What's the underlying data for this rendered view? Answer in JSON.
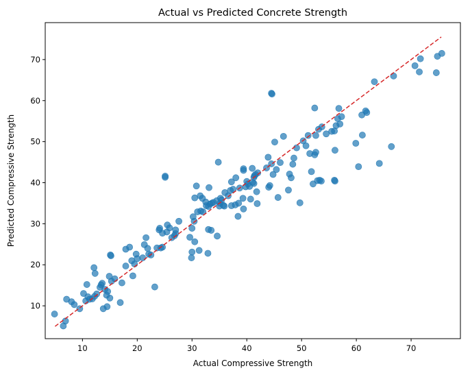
{
  "chart_data": {
    "type": "scatter",
    "title": "Actual vs Predicted Concrete Strength",
    "xlabel": "Actual Compressive Strength",
    "ylabel": "Predicted Compressive Strength",
    "xlim": [
      3.2,
      79.0
    ],
    "ylim": [
      2.0,
      79.0
    ],
    "xticks": [
      10,
      20,
      30,
      40,
      50,
      60,
      70
    ],
    "yticks": [
      10,
      20,
      30,
      40,
      50,
      60,
      70
    ],
    "grid": false,
    "point_color": "#1f77b4",
    "point_alpha": 0.7,
    "reference_line": {
      "from": [
        5,
        5
      ],
      "to": [
        75.5,
        75.5
      ],
      "color": "#d62728",
      "style": "dashed"
    },
    "points": [
      [
        4.9,
        8.0
      ],
      [
        6.5,
        5.1
      ],
      [
        6.9,
        6.3
      ],
      [
        7.1,
        11.6
      ],
      [
        8.0,
        11.0
      ],
      [
        8.5,
        10.3
      ],
      [
        9.5,
        9.3
      ],
      [
        10.2,
        13.0
      ],
      [
        10.6,
        11.2
      ],
      [
        10.8,
        15.2
      ],
      [
        11.0,
        12.2
      ],
      [
        11.3,
        11.6
      ],
      [
        11.8,
        11.7
      ],
      [
        12.2,
        12.3
      ],
      [
        12.1,
        19.3
      ],
      [
        12.3,
        17.9
      ],
      [
        12.6,
        12.9
      ],
      [
        13.2,
        14.5
      ],
      [
        13.4,
        15.1
      ],
      [
        13.6,
        15.5
      ],
      [
        13.8,
        9.3
      ],
      [
        14.1,
        14.0
      ],
      [
        14.4,
        12.6
      ],
      [
        14.5,
        9.8
      ],
      [
        14.6,
        13.5
      ],
      [
        14.9,
        17.2
      ],
      [
        15.1,
        22.4
      ],
      [
        15.2,
        22.2
      ],
      [
        15.0,
        11.9
      ],
      [
        15.3,
        16.0
      ],
      [
        15.9,
        16.6
      ],
      [
        16.9,
        10.8
      ],
      [
        17.2,
        15.6
      ],
      [
        17.9,
        19.7
      ],
      [
        17.9,
        23.8
      ],
      [
        18.6,
        24.3
      ],
      [
        19.0,
        21.0
      ],
      [
        19.2,
        17.3
      ],
      [
        19.5,
        20.2
      ],
      [
        19.8,
        22.6
      ],
      [
        20.0,
        21.5
      ],
      [
        21.0,
        21.7
      ],
      [
        21.3,
        24.9
      ],
      [
        21.6,
        26.6
      ],
      [
        21.9,
        24.0
      ],
      [
        22.1,
        22.6
      ],
      [
        22.5,
        22.4
      ],
      [
        23.2,
        14.6
      ],
      [
        23.6,
        24.1
      ],
      [
        24.0,
        28.5
      ],
      [
        24.1,
        28.9
      ],
      [
        24.3,
        24.1
      ],
      [
        24.6,
        24.3
      ],
      [
        24.6,
        27.7
      ],
      [
        25.1,
        41.3
      ],
      [
        25.1,
        41.6
      ],
      [
        25.4,
        28.0
      ],
      [
        25.5,
        29.7
      ],
      [
        25.9,
        29.0
      ],
      [
        26.3,
        26.6
      ],
      [
        26.8,
        27.1
      ],
      [
        27.0,
        27.6
      ],
      [
        27.0,
        28.5
      ],
      [
        27.6,
        30.6
      ],
      [
        29.6,
        26.7
      ],
      [
        29.9,
        21.7
      ],
      [
        30.0,
        23.1
      ],
      [
        30.0,
        28.9
      ],
      [
        30.2,
        31.7
      ],
      [
        30.4,
        30.6
      ],
      [
        30.5,
        25.6
      ],
      [
        30.5,
        36.3
      ],
      [
        30.8,
        39.2
      ],
      [
        31.0,
        32.9
      ],
      [
        31.3,
        23.5
      ],
      [
        31.5,
        36.8
      ],
      [
        31.6,
        33.1
      ],
      [
        31.9,
        36.2
      ],
      [
        32.0,
        32.9
      ],
      [
        32.5,
        35.3
      ],
      [
        32.6,
        34.4
      ],
      [
        32.9,
        22.8
      ],
      [
        33.0,
        28.6
      ],
      [
        33.0,
        34.2
      ],
      [
        33.1,
        38.8
      ],
      [
        33.3,
        34.8
      ],
      [
        33.5,
        28.4
      ],
      [
        33.6,
        35.0
      ],
      [
        33.9,
        35.2
      ],
      [
        34.5,
        35.6
      ],
      [
        34.6,
        27.0
      ],
      [
        34.8,
        45.0
      ],
      [
        35.0,
        34.3
      ],
      [
        35.1,
        35.0
      ],
      [
        35.2,
        36.2
      ],
      [
        35.4,
        35.8
      ],
      [
        35.7,
        34.5
      ],
      [
        35.9,
        34.3
      ],
      [
        36.0,
        37.6
      ],
      [
        36.6,
        36.8
      ],
      [
        37.0,
        38.1
      ],
      [
        37.2,
        34.4
      ],
      [
        37.2,
        40.2
      ],
      [
        37.5,
        38.4
      ],
      [
        37.9,
        34.6
      ],
      [
        38.0,
        41.2
      ],
      [
        38.4,
        31.8
      ],
      [
        38.5,
        35.0
      ],
      [
        38.7,
        38.7
      ],
      [
        39.3,
        36.2
      ],
      [
        39.4,
        43.0
      ],
      [
        39.4,
        43.4
      ],
      [
        39.4,
        33.6
      ],
      [
        39.8,
        39.0
      ],
      [
        40.0,
        40.3
      ],
      [
        40.2,
        39.7
      ],
      [
        40.5,
        39.1
      ],
      [
        40.7,
        36.0
      ],
      [
        41.0,
        43.5
      ],
      [
        41.1,
        40.1
      ],
      [
        41.3,
        39.8
      ],
      [
        41.3,
        41.3
      ],
      [
        41.4,
        41.7
      ],
      [
        41.6,
        42.0
      ],
      [
        41.8,
        37.8
      ],
      [
        41.9,
        34.9
      ],
      [
        42.0,
        42.4
      ],
      [
        43.6,
        43.6
      ],
      [
        43.9,
        46.2
      ],
      [
        44.0,
        38.9
      ],
      [
        44.2,
        39.3
      ],
      [
        44.5,
        61.8
      ],
      [
        44.6,
        61.6
      ],
      [
        44.5,
        44.6
      ],
      [
        44.8,
        42.0
      ],
      [
        45.1,
        49.9
      ],
      [
        45.4,
        43.2
      ],
      [
        45.7,
        36.4
      ],
      [
        46.1,
        44.9
      ],
      [
        46.7,
        51.3
      ],
      [
        47.6,
        38.2
      ],
      [
        47.8,
        42.1
      ],
      [
        48.1,
        41.2
      ],
      [
        48.4,
        44.5
      ],
      [
        48.6,
        46.0
      ],
      [
        49.1,
        48.5
      ],
      [
        49.7,
        35.1
      ],
      [
        50.3,
        50.2
      ],
      [
        50.8,
        49.0
      ],
      [
        51.2,
        51.5
      ],
      [
        51.5,
        47.1
      ],
      [
        51.8,
        42.7
      ],
      [
        52.1,
        39.7
      ],
      [
        52.4,
        58.2
      ],
      [
        52.4,
        46.8
      ],
      [
        52.6,
        47.4
      ],
      [
        52.6,
        51.5
      ],
      [
        52.9,
        40.5
      ],
      [
        53.1,
        53.0
      ],
      [
        53.3,
        40.6
      ],
      [
        53.6,
        40.4
      ],
      [
        53.7,
        53.6
      ],
      [
        54.5,
        51.9
      ],
      [
        55.5,
        52.5
      ],
      [
        56.0,
        52.6
      ],
      [
        56.0,
        40.6
      ],
      [
        56.1,
        40.4
      ],
      [
        56.1,
        47.9
      ],
      [
        56.3,
        53.9
      ],
      [
        56.6,
        55.6
      ],
      [
        56.8,
        58.1
      ],
      [
        57.0,
        54.3
      ],
      [
        57.3,
        56.1
      ],
      [
        59.9,
        49.6
      ],
      [
        60.4,
        43.9
      ],
      [
        61.0,
        56.5
      ],
      [
        61.1,
        51.6
      ],
      [
        61.7,
        57.5
      ],
      [
        61.9,
        57.1
      ],
      [
        63.3,
        64.6
      ],
      [
        64.2,
        44.7
      ],
      [
        66.4,
        48.8
      ],
      [
        66.8,
        66.0
      ],
      [
        70.7,
        68.5
      ],
      [
        71.5,
        67.0
      ],
      [
        71.7,
        70.2
      ],
      [
        74.6,
        66.8
      ],
      [
        74.8,
        70.8
      ],
      [
        75.6,
        71.5
      ]
    ]
  }
}
